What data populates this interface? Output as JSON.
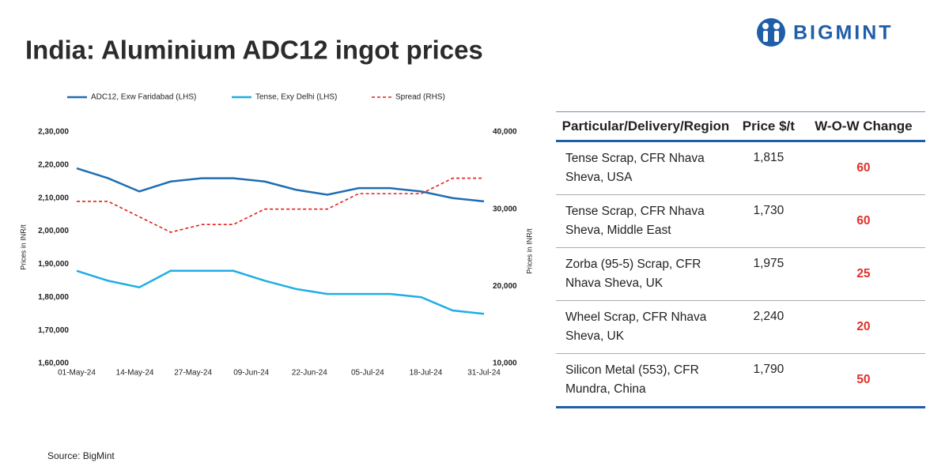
{
  "logo": "BIGMINT",
  "source": "Source: BigMint",
  "chart_data": {
    "type": "line",
    "title": "India: Aluminium ADC12 ingot prices",
    "y_label": "Prices in INR/t",
    "y2_label": "Prices in INR/t",
    "x_labels": [
      "01-May-24",
      "14-May-24",
      "27-May-24",
      "09-Jun-24",
      "22-Jun-24",
      "05-Jul-24",
      "18-Jul-24",
      "31-Jul-24"
    ],
    "ylim": [
      160000,
      230000
    ],
    "yticks": [
      {
        "value": 160000,
        "label": "1,60,000"
      },
      {
        "value": 170000,
        "label": "1,70,000"
      },
      {
        "value": 180000,
        "label": "1,80,000"
      },
      {
        "value": 190000,
        "label": "1,90,000"
      },
      {
        "value": 200000,
        "label": "2,00,000"
      },
      {
        "value": 210000,
        "label": "2,10,000"
      },
      {
        "value": 220000,
        "label": "2,20,000"
      },
      {
        "value": 230000,
        "label": "2,30,000"
      }
    ],
    "y2lim": [
      10000,
      40000
    ],
    "y2ticks": [
      {
        "value": 10000,
        "label": "10,000"
      },
      {
        "value": 20000,
        "label": "20,000"
      },
      {
        "value": 30000,
        "label": "30,000"
      },
      {
        "value": 40000,
        "label": "40,000"
      }
    ],
    "grid": false,
    "series": [
      {
        "name": "ADC12, Exw Faridabad (LHS)",
        "color": "#1f6db3",
        "values": [
          219000,
          216000,
          212000,
          215000,
          216000,
          216000,
          215000,
          212500,
          211000,
          213000,
          213000,
          212000,
          210000,
          209000
        ]
      },
      {
        "name": "Tense, Exy Delhi (LHS)",
        "color": "#1eaee6",
        "values": [
          188000,
          185000,
          183000,
          188000,
          188000,
          188000,
          185000,
          182500,
          181000,
          181000,
          181000,
          180000,
          176000,
          175000
        ]
      },
      {
        "name": "Spread (RHS)",
        "color": "#e0201b",
        "dashed": true,
        "axis": "y2",
        "values": [
          31000,
          31000,
          29000,
          27000,
          28000,
          28000,
          30000,
          30000,
          30000,
          32000,
          32000,
          32000,
          34000,
          34000
        ]
      }
    ]
  },
  "table": {
    "columns": [
      "Particular/Delivery/Region",
      "Price $/t",
      "W-O-W Change"
    ],
    "rows": [
      [
        "Tense Scrap, CFR Nhava Sheva, USA",
        "1,815",
        60
      ],
      [
        "Tense Scrap, CFR Nhava Sheva, Middle East",
        "1,730",
        60
      ],
      [
        "Zorba (95-5) Scrap, CFR Nhava Sheva, UK",
        "1,975",
        25
      ],
      [
        "Wheel Scrap, CFR Nhava Sheva, UK",
        "2,240",
        20
      ],
      [
        "Silicon Metal (553), CFR Mundra, China",
        "1,790",
        50
      ]
    ]
  }
}
